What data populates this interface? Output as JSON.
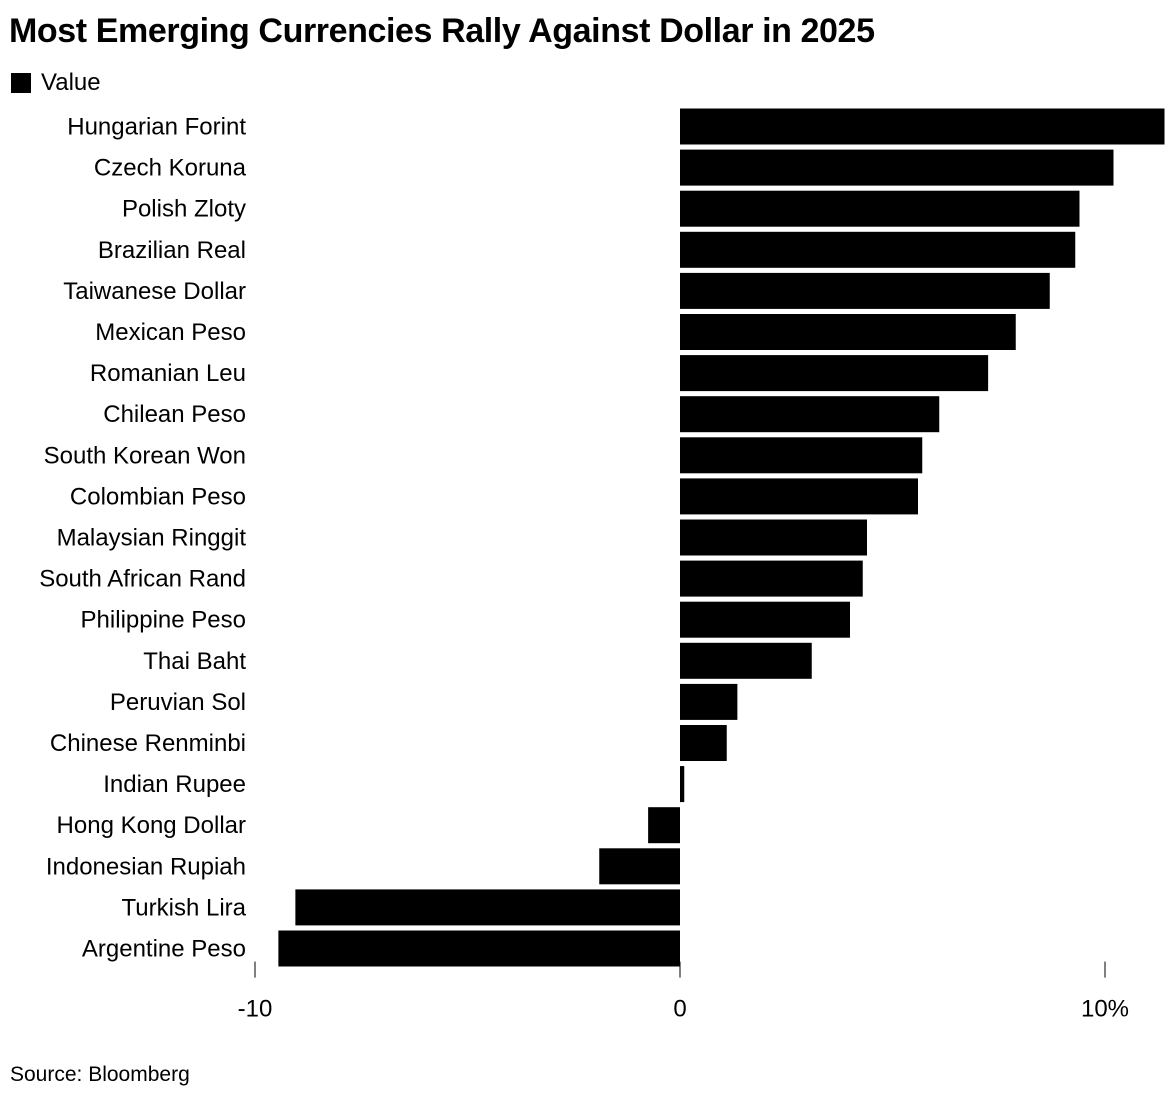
{
  "chart_data": {
    "type": "bar",
    "orientation": "horizontal",
    "title": "Most Emerging Currencies Rally Against Dollar in 2025",
    "legend": [
      {
        "name": "Value",
        "color": "#000000"
      }
    ],
    "legend_position": "top-left",
    "categories": [
      "Hungarian Forint",
      "Czech Koruna",
      "Polish Zloty",
      "Brazilian Real",
      "Taiwanese Dollar",
      "Mexican Peso",
      "Romanian Leu",
      "Chilean Peso",
      "South Korean Won",
      "Colombian Peso",
      "Malaysian Ringgit",
      "South African Rand",
      "Philippine Peso",
      "Thai Baht",
      "Peruvian Sol",
      "Chinese Renminbi",
      "Indian Rupee",
      "Hong Kong Dollar",
      "Indonesian Rupiah",
      "Turkish Lira",
      "Argentine Peso"
    ],
    "series": [
      {
        "name": "Value",
        "color": "#000000",
        "values": [
          11.4,
          10.2,
          9.4,
          9.3,
          8.7,
          7.9,
          7.25,
          6.1,
          5.7,
          5.6,
          4.4,
          4.3,
          4.0,
          3.1,
          1.35,
          1.1,
          0.1,
          -0.75,
          -1.9,
          -9.05,
          -9.45
        ]
      }
    ],
    "xlim": [
      -10,
      11.5
    ],
    "xticks": [
      {
        "value": -10,
        "label": "-10"
      },
      {
        "value": 0,
        "label": "0"
      },
      {
        "value": 10,
        "label": "10%"
      }
    ],
    "xlabel": "",
    "ylabel": "",
    "grid": false
  },
  "source": "Source: Bloomberg"
}
